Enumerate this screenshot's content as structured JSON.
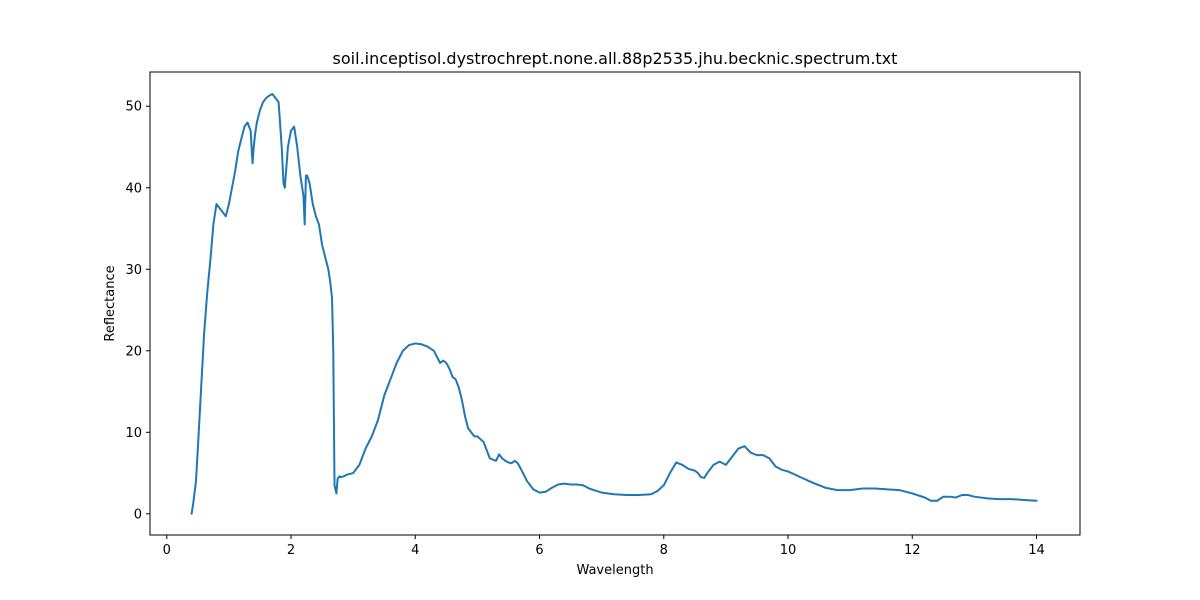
{
  "chart_data": {
    "type": "line",
    "title": "soil.inceptisol.dystrochrept.none.all.88p2535.jhu.becknic.spectrum.txt",
    "xlabel": "Wavelength",
    "ylabel": "Reflectance",
    "xlim": [
      -0.27,
      14.7
    ],
    "ylim": [
      -2.6,
      54.2
    ],
    "xticks": [
      0,
      2,
      4,
      6,
      8,
      10,
      12,
      14
    ],
    "yticks": [
      0,
      10,
      20,
      30,
      40,
      50
    ],
    "grid": false,
    "legend": "none",
    "series": [
      {
        "color": "#1f77b4",
        "x": [
          0.4,
          0.43,
          0.47,
          0.5,
          0.55,
          0.6,
          0.65,
          0.7,
          0.75,
          0.8,
          0.85,
          0.9,
          0.95,
          1.0,
          1.05,
          1.1,
          1.15,
          1.2,
          1.25,
          1.3,
          1.35,
          1.38,
          1.4,
          1.42,
          1.45,
          1.5,
          1.55,
          1.6,
          1.65,
          1.7,
          1.75,
          1.8,
          1.85,
          1.88,
          1.9,
          1.92,
          1.95,
          2.0,
          2.05,
          2.1,
          2.15,
          2.2,
          2.22,
          2.24,
          2.26,
          2.3,
          2.35,
          2.4,
          2.45,
          2.5,
          2.55,
          2.6,
          2.63,
          2.66,
          2.68,
          2.7,
          2.73,
          2.75,
          2.78,
          2.8,
          2.85,
          2.9,
          3.0,
          3.1,
          3.2,
          3.3,
          3.4,
          3.5,
          3.6,
          3.7,
          3.8,
          3.9,
          4.0,
          4.1,
          4.2,
          4.3,
          4.4,
          4.45,
          4.5,
          4.55,
          4.6,
          4.65,
          4.7,
          4.75,
          4.8,
          4.85,
          4.9,
          4.95,
          5.0,
          5.1,
          5.2,
          5.3,
          5.35,
          5.4,
          5.45,
          5.5,
          5.55,
          5.6,
          5.65,
          5.7,
          5.8,
          5.9,
          6.0,
          6.1,
          6.2,
          6.3,
          6.4,
          6.5,
          6.6,
          6.7,
          6.8,
          7.0,
          7.2,
          7.4,
          7.6,
          7.8,
          7.9,
          8.0,
          8.1,
          8.2,
          8.3,
          8.4,
          8.5,
          8.55,
          8.6,
          8.65,
          8.7,
          8.8,
          8.9,
          9.0,
          9.1,
          9.2,
          9.3,
          9.4,
          9.5,
          9.6,
          9.7,
          9.8,
          9.9,
          10.0,
          10.2,
          10.4,
          10.6,
          10.8,
          11.0,
          11.2,
          11.4,
          11.6,
          11.8,
          12.0,
          12.2,
          12.3,
          12.4,
          12.5,
          12.6,
          12.7,
          12.8,
          12.9,
          13.0,
          13.2,
          13.4,
          13.6,
          13.8,
          14.0
        ],
        "y": [
          0.0,
          1.5,
          4.0,
          8.0,
          15.0,
          22.0,
          27.0,
          31.0,
          35.5,
          38.0,
          37.5,
          37.0,
          36.5,
          38.0,
          40.0,
          42.0,
          44.5,
          46.0,
          47.5,
          48.0,
          47.0,
          43.0,
          45.0,
          46.5,
          48.0,
          49.5,
          50.5,
          51.0,
          51.3,
          51.5,
          51.0,
          50.5,
          45.0,
          40.5,
          40.0,
          42.0,
          45.0,
          47.0,
          47.5,
          45.0,
          41.5,
          39.0,
          35.5,
          41.5,
          41.5,
          40.5,
          38.0,
          36.5,
          35.5,
          33.0,
          31.5,
          30.0,
          28.5,
          26.5,
          20.0,
          3.5,
          2.5,
          4.3,
          4.6,
          4.5,
          4.6,
          4.8,
          5.0,
          6.0,
          8.0,
          9.5,
          11.5,
          14.5,
          16.5,
          18.5,
          20.0,
          20.7,
          20.9,
          20.8,
          20.5,
          20.0,
          18.5,
          18.8,
          18.5,
          17.8,
          16.8,
          16.5,
          15.5,
          14.0,
          12.0,
          10.5,
          10.0,
          9.5,
          9.5,
          8.8,
          6.8,
          6.5,
          7.3,
          6.8,
          6.5,
          6.3,
          6.2,
          6.5,
          6.2,
          5.5,
          4.0,
          3.0,
          2.6,
          2.7,
          3.2,
          3.6,
          3.7,
          3.6,
          3.6,
          3.5,
          3.1,
          2.6,
          2.4,
          2.3,
          2.3,
          2.4,
          2.8,
          3.5,
          5.0,
          6.3,
          6.0,
          5.5,
          5.3,
          5.0,
          4.5,
          4.4,
          5.0,
          6.0,
          6.4,
          6.0,
          7.0,
          8.0,
          8.3,
          7.5,
          7.2,
          7.2,
          6.8,
          5.8,
          5.4,
          5.2,
          4.5,
          3.8,
          3.2,
          2.9,
          2.9,
          3.1,
          3.1,
          3.0,
          2.9,
          2.5,
          2.0,
          1.6,
          1.6,
          2.1,
          2.1,
          2.0,
          2.3,
          2.3,
          2.1,
          1.9,
          1.8,
          1.8,
          1.7,
          1.6
        ]
      }
    ]
  }
}
